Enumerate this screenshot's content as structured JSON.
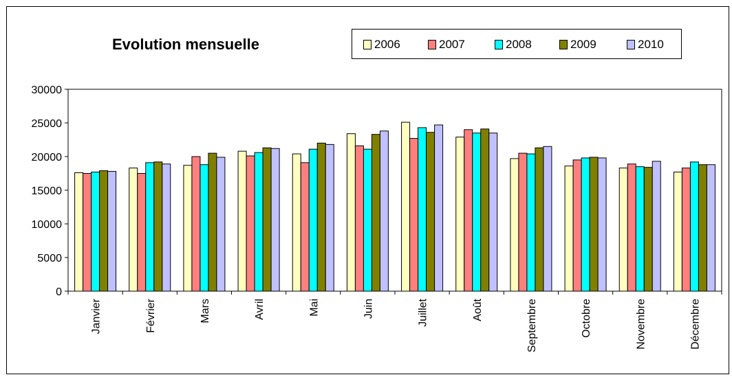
{
  "chart_data": {
    "type": "bar",
    "title": "Evolution mensuelle",
    "xlabel": "",
    "ylabel": "",
    "ylim": [
      0,
      30000
    ],
    "yticks": [
      0,
      5000,
      10000,
      15000,
      20000,
      25000,
      30000
    ],
    "grid": false,
    "legend_position": "top-right",
    "categories": [
      "Janvier",
      "Février",
      "Mars",
      "Avril",
      "Mai",
      "Juin",
      "Juillet",
      "Août",
      "Septembre",
      "Octobre",
      "Novembre",
      "Décembre"
    ],
    "series": [
      {
        "name": "2006",
        "color": "#FFFFC0",
        "values": [
          17600,
          18300,
          18700,
          20800,
          20400,
          23400,
          25100,
          22900,
          19700,
          18600,
          18300,
          17700
        ]
      },
      {
        "name": "2007",
        "color": "#FF7F7F",
        "values": [
          17500,
          17500,
          20000,
          20100,
          19100,
          21600,
          22700,
          24000,
          20500,
          19500,
          18900,
          18300
        ]
      },
      {
        "name": "2008",
        "color": "#00FFFF",
        "values": [
          17700,
          19100,
          18800,
          20600,
          21100,
          21100,
          24300,
          23500,
          20400,
          19800,
          18500,
          19200
        ]
      },
      {
        "name": "2009",
        "color": "#808000",
        "values": [
          17900,
          19200,
          20500,
          21300,
          22000,
          23300,
          23600,
          24100,
          21300,
          19900,
          18400,
          18800
        ]
      },
      {
        "name": "2010",
        "color": "#C0C0FF",
        "values": [
          17800,
          18900,
          19900,
          21200,
          21800,
          23800,
          24700,
          23500,
          21500,
          19800,
          19300,
          18800
        ]
      }
    ]
  }
}
